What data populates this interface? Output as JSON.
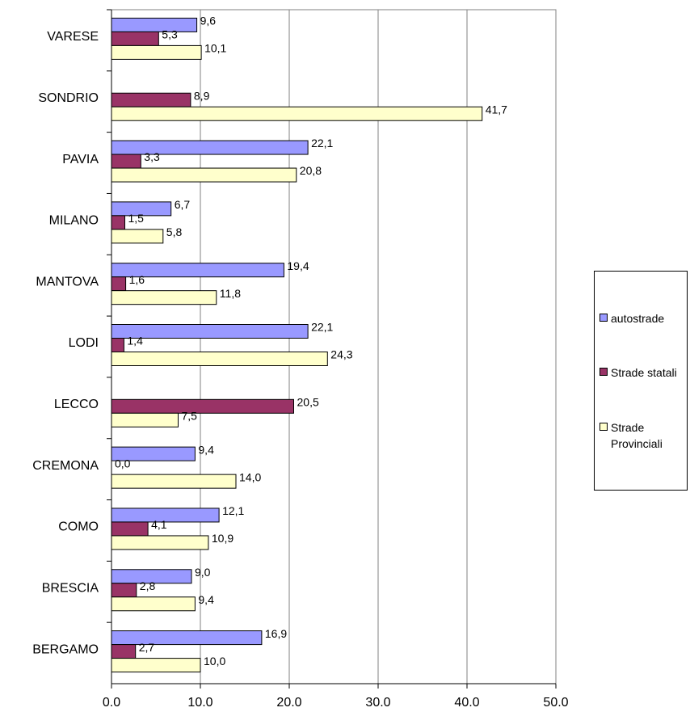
{
  "chart_data": {
    "type": "bar",
    "orientation": "horizontal",
    "categories": [
      "VARESE",
      "SONDRIO",
      "PAVIA",
      "MILANO",
      "MANTOVA",
      "LODI",
      "LECCO",
      "CREMONA",
      "COMO",
      "BRESCIA",
      "BERGAMO"
    ],
    "series": [
      {
        "name": "autostrade",
        "color": "#9999ff",
        "values": [
          9.6,
          null,
          22.1,
          6.7,
          19.4,
          22.1,
          null,
          9.4,
          12.1,
          9.0,
          16.9
        ],
        "value_labels": [
          "9,6",
          null,
          "22,1",
          "6,7",
          "19,4",
          "22,1",
          null,
          "9,4",
          "12,1",
          "9,0",
          "16,9"
        ]
      },
      {
        "name": "Strade statali",
        "color": "#993366",
        "values": [
          5.3,
          8.9,
          3.3,
          1.5,
          1.6,
          1.4,
          20.5,
          0.0,
          4.1,
          2.8,
          2.7
        ],
        "value_labels": [
          "5,3",
          "8,9",
          "3,3",
          "1,5",
          "1,6",
          "1,4",
          "20,5",
          "0,0",
          "4,1",
          "2,8",
          "2,7"
        ]
      },
      {
        "name": "Strade Provinciali",
        "color": "#ffffcc",
        "values": [
          10.1,
          41.7,
          20.8,
          5.8,
          11.8,
          24.3,
          7.5,
          14.0,
          10.9,
          9.4,
          10.0
        ],
        "value_labels": [
          "10,1",
          "41,7",
          "20,8",
          "5,8",
          "11,8",
          "24,3",
          "7,5",
          "14,0",
          "10,9",
          "9,4",
          "10,0"
        ]
      }
    ],
    "xlim": [
      0,
      50
    ],
    "xticks": [
      {
        "value": 0,
        "label": "0.0"
      },
      {
        "value": 10,
        "label": "10.0"
      },
      {
        "value": 20,
        "label": "20.0"
      },
      {
        "value": 30,
        "label": "30.0"
      },
      {
        "value": 40,
        "label": "40.0"
      },
      {
        "value": 50,
        "label": "50.0"
      }
    ],
    "grid": true,
    "legend": "right"
  }
}
